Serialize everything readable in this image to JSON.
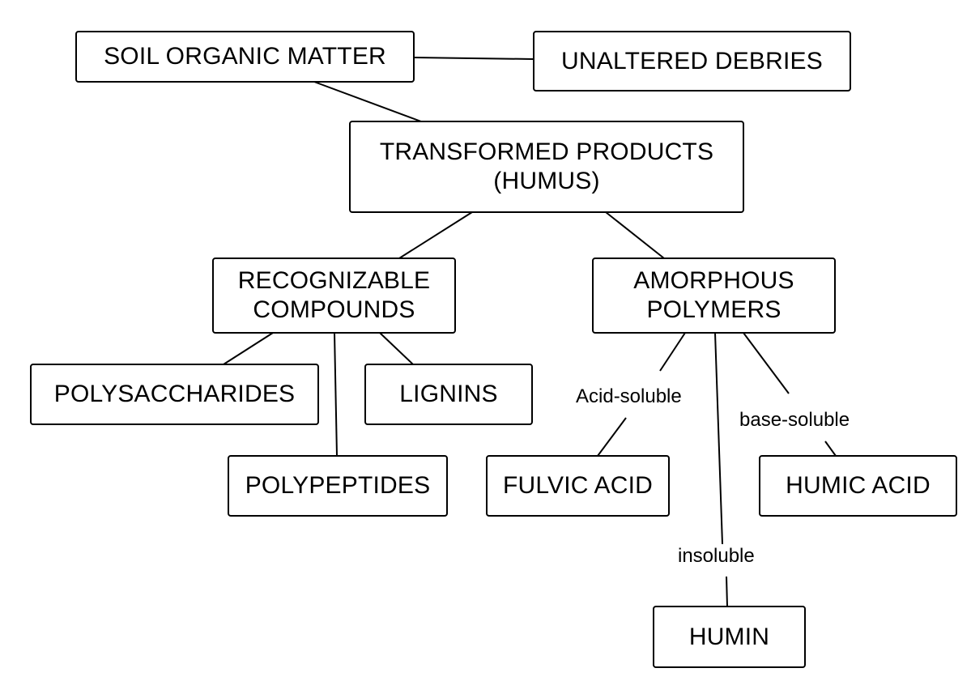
{
  "nodes": {
    "soil_organic_matter": "SOIL ORGANIC MATTER",
    "unaltered_debries": "UNALTERED DEBRIES",
    "transformed_products": "TRANSFORMED PRODUCTS\n(HUMUS)",
    "recognizable_compounds": "RECOGNIZABLE\nCOMPOUNDS",
    "amorphous_polymers": "AMORPHOUS\nPOLYMERS",
    "polysaccharides": "POLYSACCHARIDES",
    "lignins": "LIGNINS",
    "polypeptides": "POLYPEPTIDES",
    "fulvic_acid": "FULVIC ACID",
    "humic_acid": "HUMIC ACID",
    "humin": "HUMIN"
  },
  "edge_labels": {
    "acid_soluble": "Acid-soluble",
    "base_soluble": "base-soluble",
    "insoluble": "insoluble"
  }
}
